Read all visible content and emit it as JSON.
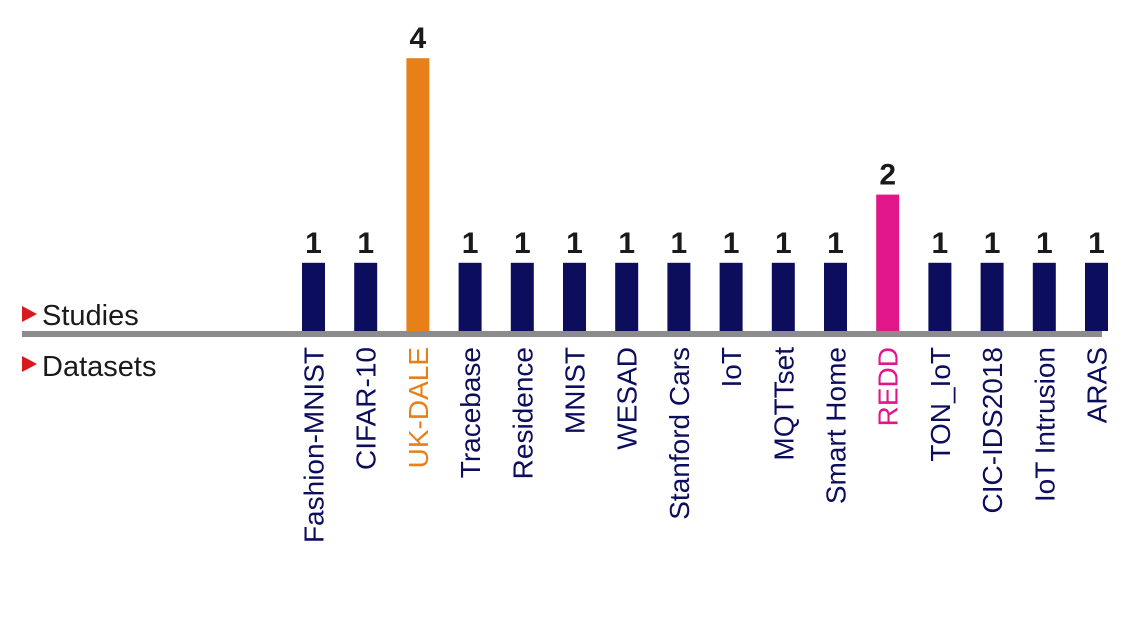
{
  "legend": {
    "studies_label": "Studies",
    "datasets_label": "Datasets",
    "marker_color": "#d71920"
  },
  "colors": {
    "default_bar": "#0d0d5e",
    "axis": "#8c8c8c"
  },
  "chart_data": {
    "type": "bar",
    "categories": [
      "Fashion-MNIST",
      "CIFAR-10",
      "UK-DALE",
      "Tracebase",
      "Residence",
      "MNIST",
      "WESAD",
      "Stanford Cars",
      "IoT",
      "MQTTset",
      "Smart Home",
      "REDD",
      "TON_IoT",
      "CIC-IDS2018",
      "IoT Intrusion",
      "ARAS"
    ],
    "values": [
      1,
      1,
      4,
      1,
      1,
      1,
      1,
      1,
      1,
      1,
      1,
      2,
      1,
      1,
      1,
      1
    ],
    "bar_colors": [
      "#0d0d5e",
      "#0d0d5e",
      "#e8801a",
      "#0d0d5e",
      "#0d0d5e",
      "#0d0d5e",
      "#0d0d5e",
      "#0d0d5e",
      "#0d0d5e",
      "#0d0d5e",
      "#0d0d5e",
      "#e0168a",
      "#0d0d5e",
      "#0d0d5e",
      "#0d0d5e",
      "#0d0d5e"
    ],
    "value_labels": [
      "1",
      "1",
      "4",
      "1",
      "1",
      "1",
      "1",
      "1",
      "1",
      "1",
      "1",
      "2",
      "1",
      "1",
      "1",
      "1"
    ],
    "ylim": [
      0,
      4
    ],
    "grid": false,
    "legend_position": "left"
  }
}
